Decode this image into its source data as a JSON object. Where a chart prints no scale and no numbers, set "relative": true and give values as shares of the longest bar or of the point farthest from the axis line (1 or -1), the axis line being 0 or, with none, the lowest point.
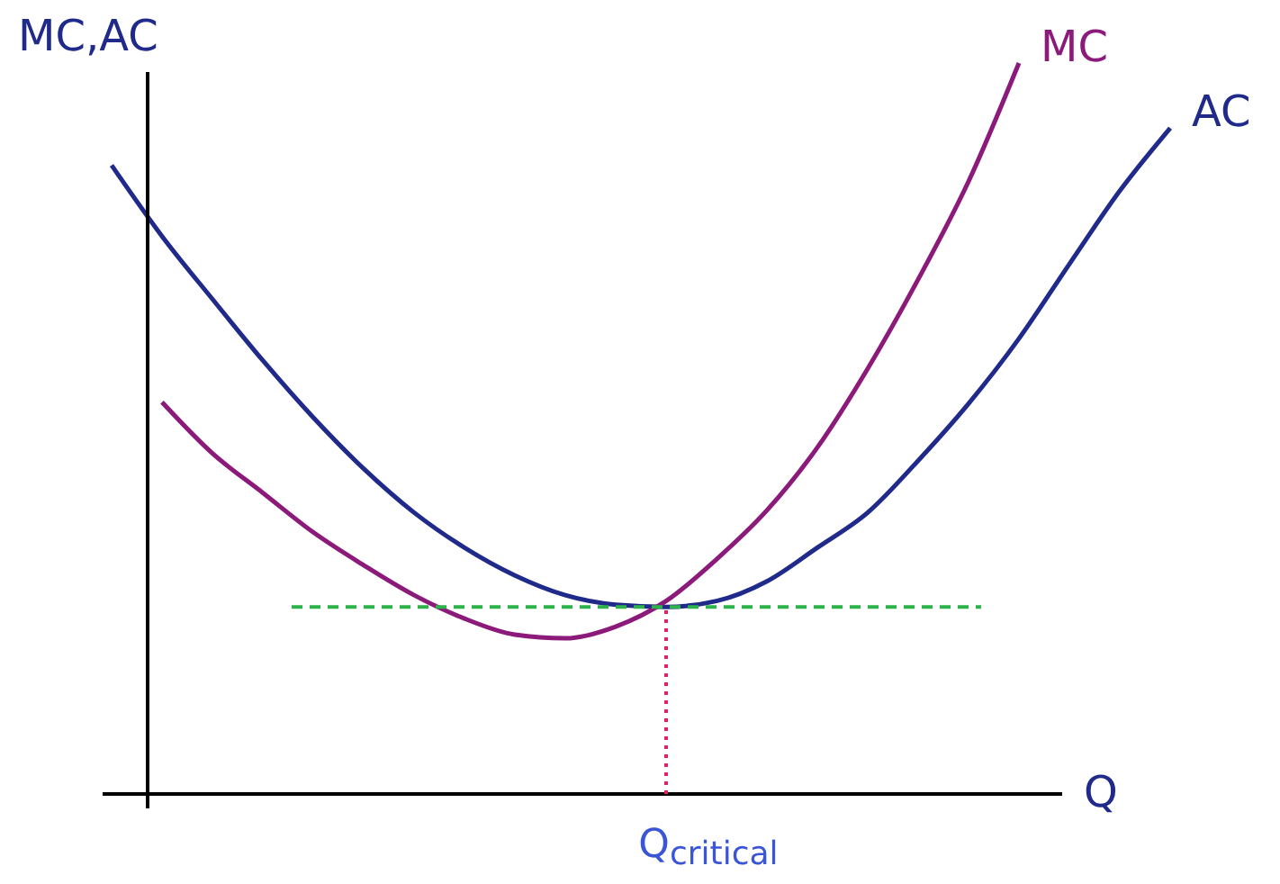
{
  "chart_data": {
    "type": "line",
    "relative": true,
    "xlabel": "Q",
    "ylabel": "MC,AC",
    "legend": false,
    "categories": [
      null,
      null,
      null,
      null,
      null,
      null,
      null,
      null,
      null,
      null,
      null,
      null,
      null,
      null,
      null,
      null,
      null,
      null,
      null,
      null,
      null,
      null
    ],
    "series": [
      {
        "name": "AC",
        "color": "#1f2a8a",
        "values": [
          0.86,
          0.763,
          0.677,
          0.593,
          0.515,
          0.445,
          0.385,
          0.337,
          0.299,
          0.272,
          0.259,
          0.256,
          0.264,
          0.291,
          0.337,
          0.385,
          0.456,
          0.534,
          0.623,
          0.725,
          0.825,
          0.911
        ]
      },
      {
        "name": "MC",
        "color": "#8b1a7a",
        "values": [
          null,
          0.536,
          0.466,
          0.412,
          0.358,
          0.313,
          0.272,
          0.24,
          0.218,
          0.213,
          0.229,
          0.264,
          0.321,
          0.388,
          0.474,
          0.582,
          0.704,
          0.838,
          1,
          null,
          null,
          null
        ]
      }
    ],
    "ref_lines": [
      {
        "axis": "y",
        "value": 0.256,
        "color": "#2db34a",
        "line_style": "dashed"
      }
    ],
    "annotations": [
      "Q$_{critical}$"
    ]
  }
}
